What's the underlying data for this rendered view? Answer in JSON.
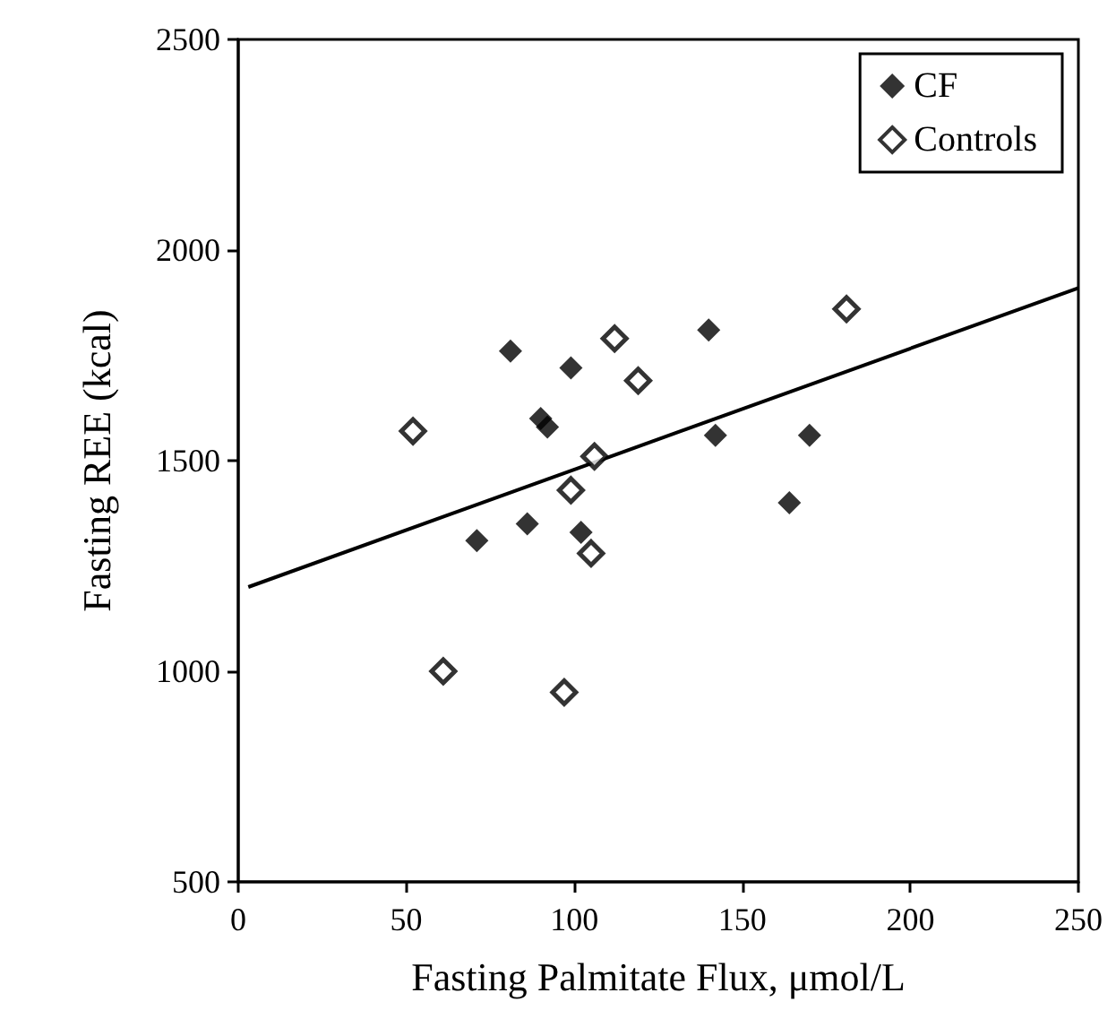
{
  "chart_data": {
    "type": "scatter",
    "xlabel": "Fasting Palmitate Flux, μmol/L",
    "ylabel": "Fasting REE (kcal)",
    "xlim": [
      0,
      250
    ],
    "xticks": [
      0,
      50,
      100,
      150,
      200,
      250
    ],
    "ylim": [
      500,
      2500
    ],
    "yticks": [
      500,
      1000,
      1500,
      2000,
      2500
    ],
    "grid": false,
    "legend": "top right",
    "marker": "diamond",
    "series": [
      {
        "name": "CF",
        "color": "#000000",
        "x": [
          81,
          99,
          90,
          92,
          140,
          142,
          170,
          164,
          71,
          86,
          102
        ],
        "values": [
          1760,
          1720,
          1600,
          1580,
          1810,
          1560,
          1560,
          1400,
          1310,
          1350,
          1330
        ]
      },
      {
        "name": "Controls",
        "color": "#000000",
        "x": [
          52,
          112,
          119,
          106,
          99,
          105,
          61,
          97,
          181
        ],
        "values": [
          1570,
          1790,
          1690,
          1510,
          1430,
          1280,
          1000,
          950,
          1860
        ]
      },
      {
        "type": "line",
        "color": "#000000",
        "marker": "none",
        "line_style": "solid",
        "x": [
          3,
          250
        ],
        "values": [
          1200,
          1910
        ]
      }
    ]
  }
}
